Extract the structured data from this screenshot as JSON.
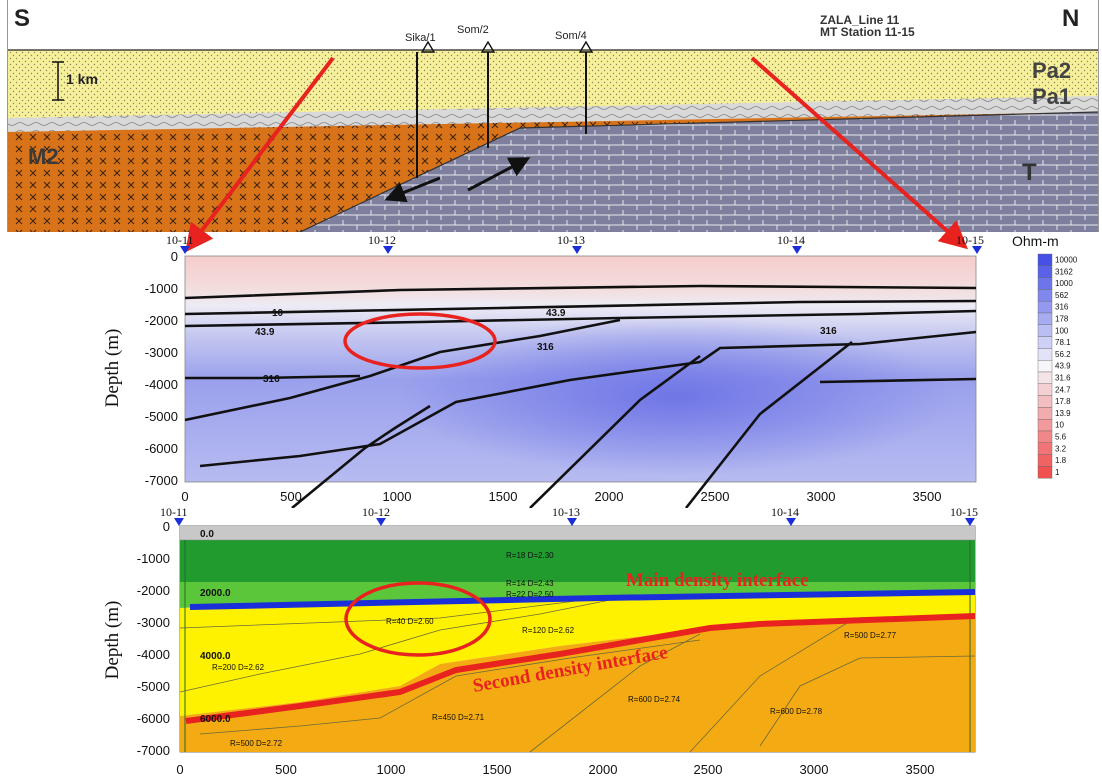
{
  "geology": {
    "south": "S",
    "north": "N",
    "title_line1": "ZALA_Line 11",
    "title_line2": "MT Station 11-15",
    "scale_bar": "1 km",
    "wells": [
      "Sika/1",
      "Som/2",
      "Som/4"
    ],
    "layers": [
      "Pa2",
      "Pa1",
      "M2",
      "T"
    ]
  },
  "mt_section": {
    "y_axis_label": "Depth (m)",
    "stations": [
      "10-11",
      "10-12",
      "10-13",
      "10-14",
      "10-15"
    ],
    "y_ticks": [
      "0",
      "-1000",
      "-2000",
      "-3000",
      "-4000",
      "-5000",
      "-6000",
      "-7000"
    ],
    "x_ticks": [
      "0",
      "500",
      "1000",
      "1500",
      "2000",
      "2500",
      "3000",
      "3500"
    ],
    "contour_labels": [
      "10",
      "43.9",
      "43.9",
      "316",
      "316",
      "316"
    ]
  },
  "colorscale": {
    "unit": "Ohm-m",
    "values": [
      "10000",
      "3162",
      "1000",
      "562",
      "316",
      "178",
      "100",
      "78.1",
      "56.2",
      "43.9",
      "31.6",
      "24.7",
      "17.8",
      "13.9",
      "10",
      "5.6",
      "3.2",
      "1.8",
      "1"
    ]
  },
  "gravity_section": {
    "y_axis_label": "Depth (m)",
    "stations": [
      "10-11",
      "10-12",
      "10-13",
      "10-14",
      "10-15"
    ],
    "y_ticks": [
      "0",
      "-1000",
      "-2000",
      "-3000",
      "-4000",
      "-5000",
      "-6000",
      "-7000"
    ],
    "x_ticks": [
      "0",
      "500",
      "1000",
      "1500",
      "2000",
      "2500",
      "3000",
      "3500"
    ],
    "depth_labels": [
      "0.0",
      "2000.0",
      "4000.0",
      "6000.0"
    ],
    "model_labels": [
      "R=18  D=2.30",
      "R=14  D=2.43",
      "R=22  D=2.50",
      "R=40  D=2.60",
      "R=120  D=2.62",
      "R=500  D=2.77",
      "R=200  D=2.62",
      "R=600  D=2.74",
      "R=450  D=2.71",
      "R=600  D=2.78",
      "R=500  D=2.72"
    ],
    "main_interface": "Main density interface",
    "second_interface": "Second density interface"
  },
  "colors": {
    "fault_arrow": "#e8231f",
    "main_interface": "#1a2fd8",
    "second_interface": "#e8231f",
    "sand": "#f7f09a",
    "clay": "#d9d9d9",
    "orange_layer": "#d9731a",
    "basement": "#7d7f9c"
  }
}
